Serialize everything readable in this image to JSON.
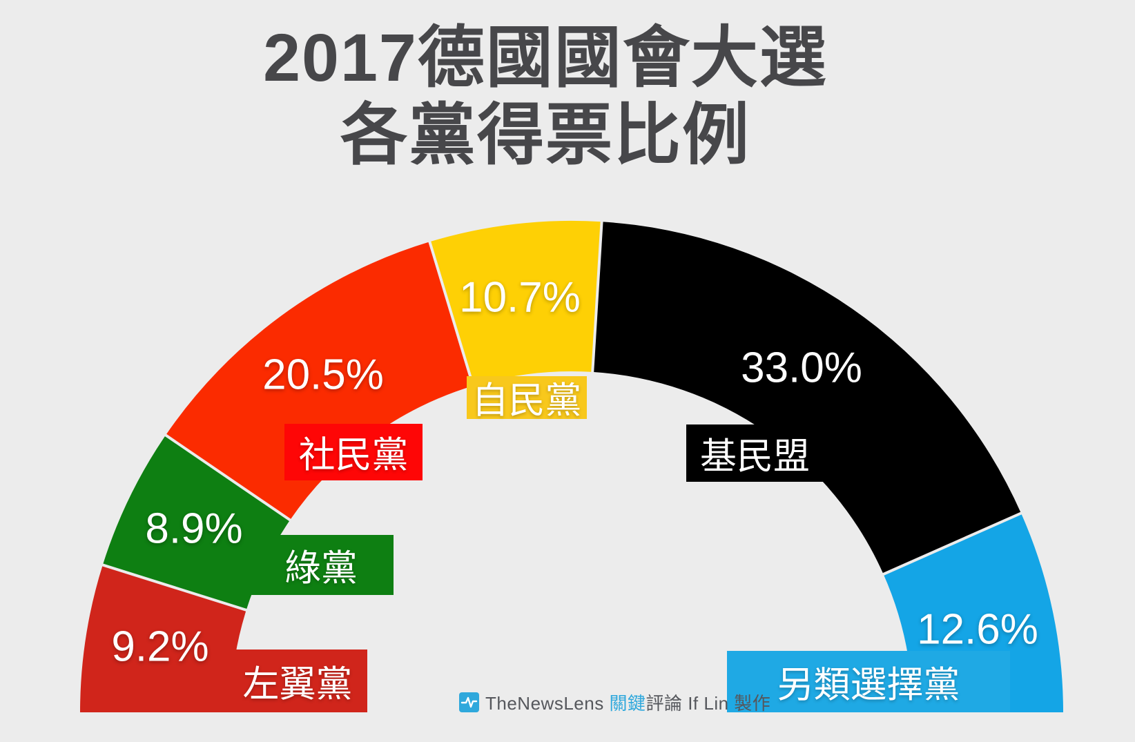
{
  "title": {
    "line1": "2017德國國會大選",
    "line2": "各黨得票比例",
    "color": "#47474A"
  },
  "background_color": "#ECECEC",
  "chart_data": {
    "type": "pie",
    "variant": "semicircle-donut",
    "title": "2017德國國會大選 各黨得票比例",
    "arc_degrees": 180,
    "unit": "%",
    "order": "left-to-right (clockwise from 180° to 0°)",
    "legend_position": "on-segment boxes",
    "segments": [
      {
        "party": "左翼黨",
        "value": 9.2,
        "pct_label": "9.2%",
        "color": "#D0251B",
        "box_color": "#D0251B"
      },
      {
        "party": "綠黨",
        "value": 8.9,
        "pct_label": "8.9%",
        "color": "#0E7F12",
        "box_color": "#0E7F12"
      },
      {
        "party": "社民黨",
        "value": 20.5,
        "pct_label": "20.5%",
        "color": "#FB2B00",
        "box_color": "#FE0606"
      },
      {
        "party": "自民黨",
        "value": 10.7,
        "pct_label": "10.7%",
        "color": "#FED005",
        "box_color": "#F8C81C"
      },
      {
        "party": "基民盟",
        "value": 33.0,
        "pct_label": "33.0%",
        "color": "#000000",
        "box_color": "#000000"
      },
      {
        "party": "另類選擇黨",
        "value": 12.6,
        "pct_label": "12.6%",
        "color": "#14A5E6",
        "box_color": "#1FA9E4"
      }
    ]
  },
  "footer": {
    "brand": "TheNewsLens",
    "brand_cjk_highlight": "關鍵",
    "brand_cjk_rest": "評論",
    "credit": "If Lin 製作",
    "brand_color": "#55575C",
    "highlight_color": "#2FA8DC",
    "icon": "pulse-waveform-icon"
  }
}
